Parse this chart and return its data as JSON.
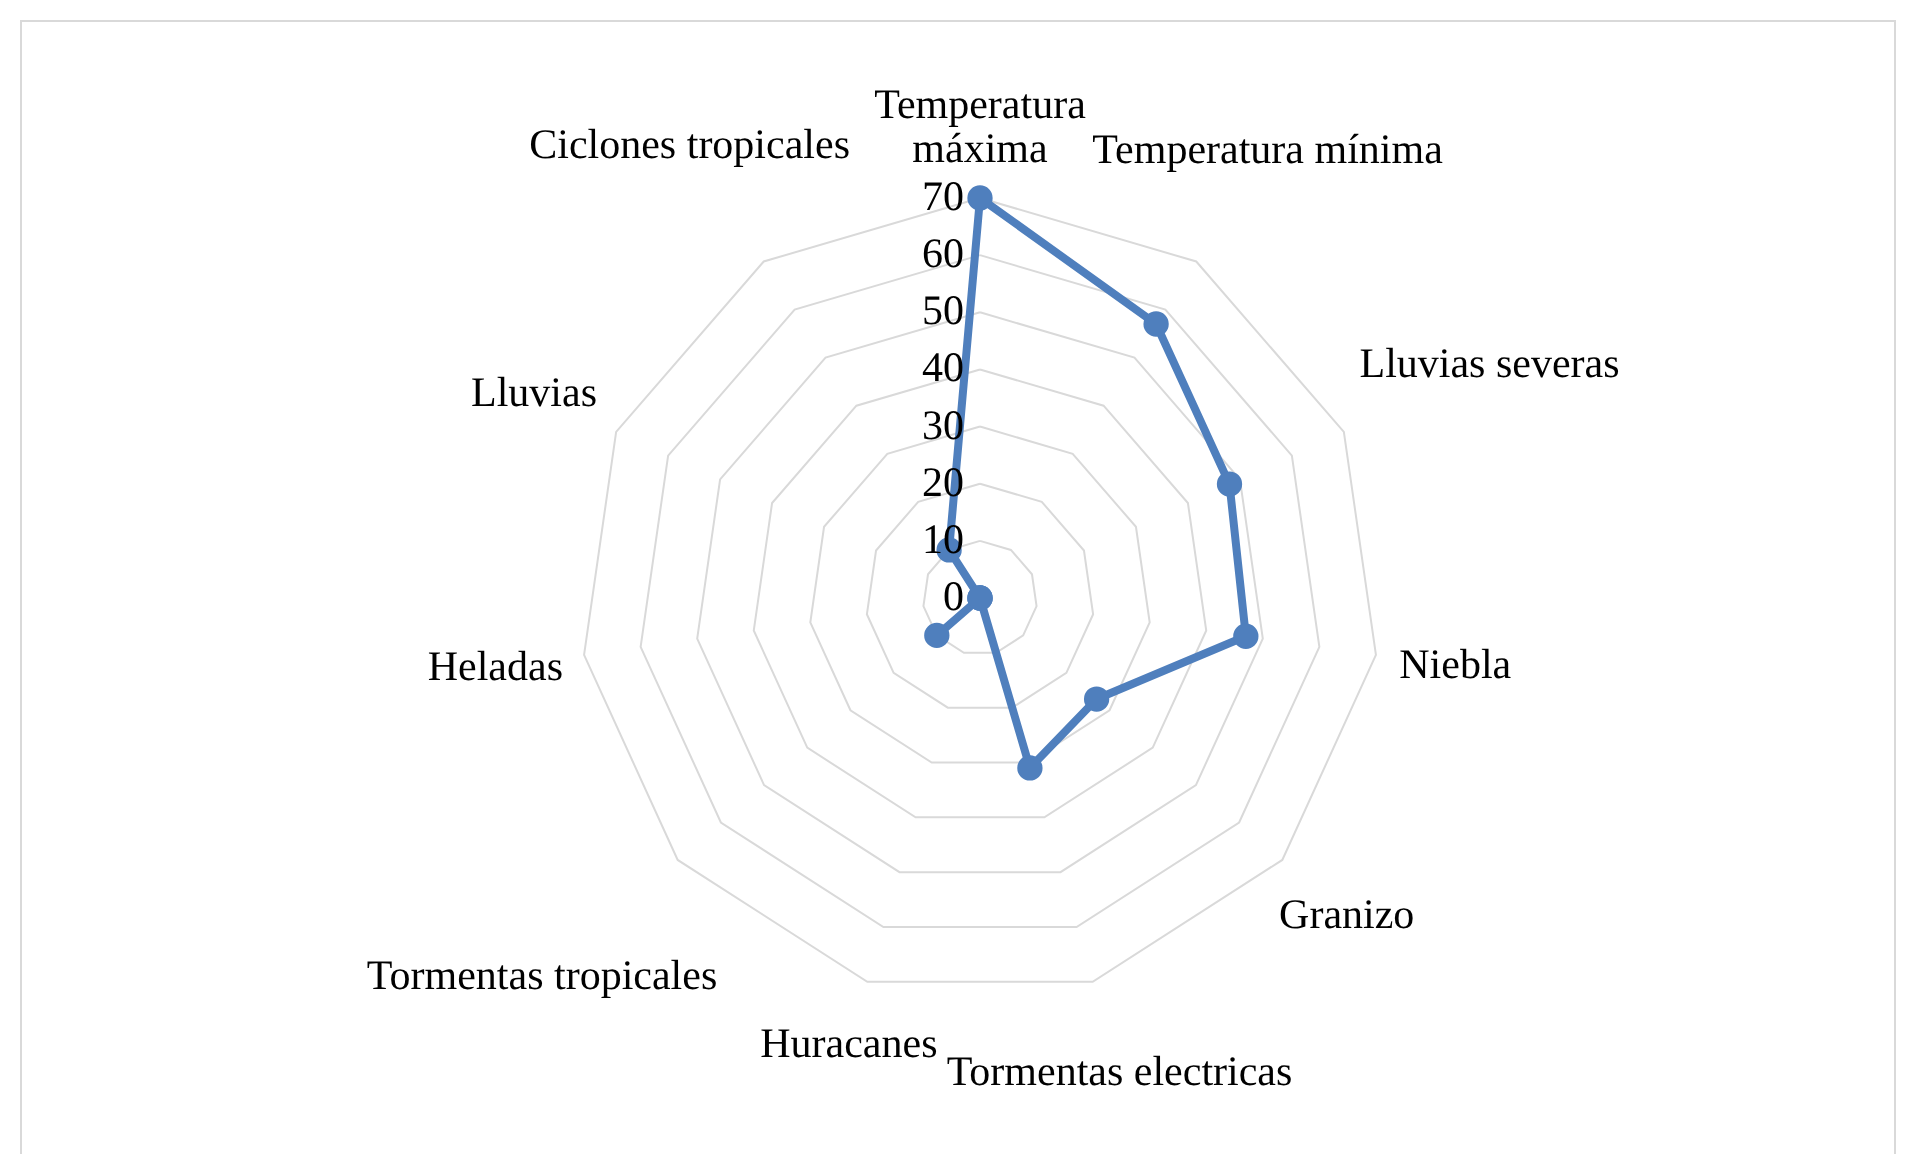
{
  "chart_data": {
    "type": "radar",
    "categories": [
      "Temperatura máxima",
      "Temperatura mínima",
      "Lluvias severas",
      "Niebla",
      "Granizo",
      "Tormentas electricas",
      "Huracanes",
      "Tormentas tropicales",
      "Heladas",
      "Lluvias",
      "Ciclones tropicales"
    ],
    "series": [
      {
        "color": "#4f7fbd",
        "values": [
          70,
          57,
          48,
          47,
          27,
          31,
          0,
          10,
          0,
          0,
          10
        ]
      }
    ],
    "ylim": [
      0,
      70
    ],
    "yticks": [
      0,
      10,
      20,
      30,
      40,
      50,
      60,
      70
    ],
    "grid": true,
    "marker": "circle"
  }
}
